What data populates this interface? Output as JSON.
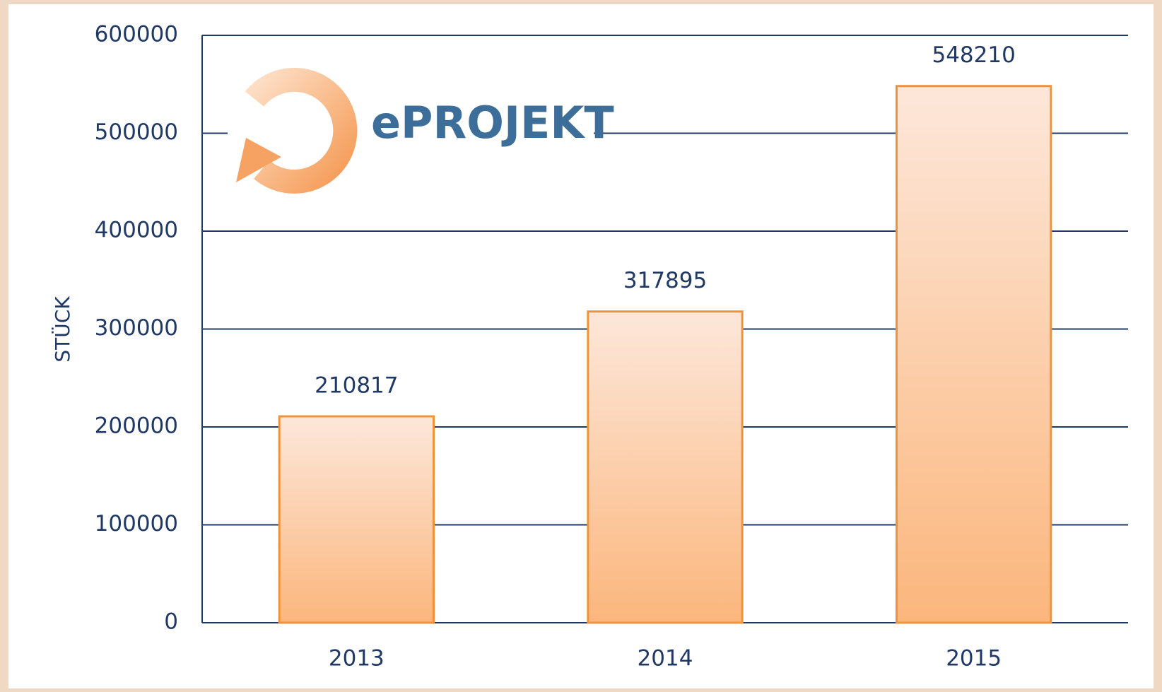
{
  "chart_data": {
    "type": "bar",
    "logo": "ePROJEKT",
    "y_label": "STÜCK",
    "categories": [
      "2013",
      "2014",
      "2015"
    ],
    "values": [
      210817,
      317895,
      548210
    ],
    "color": "#f0923c",
    "ylim": [
      0,
      600000
    ],
    "yticks": [
      0,
      100000,
      200000,
      300000,
      400000,
      500000,
      600000
    ],
    "grid": true
  }
}
